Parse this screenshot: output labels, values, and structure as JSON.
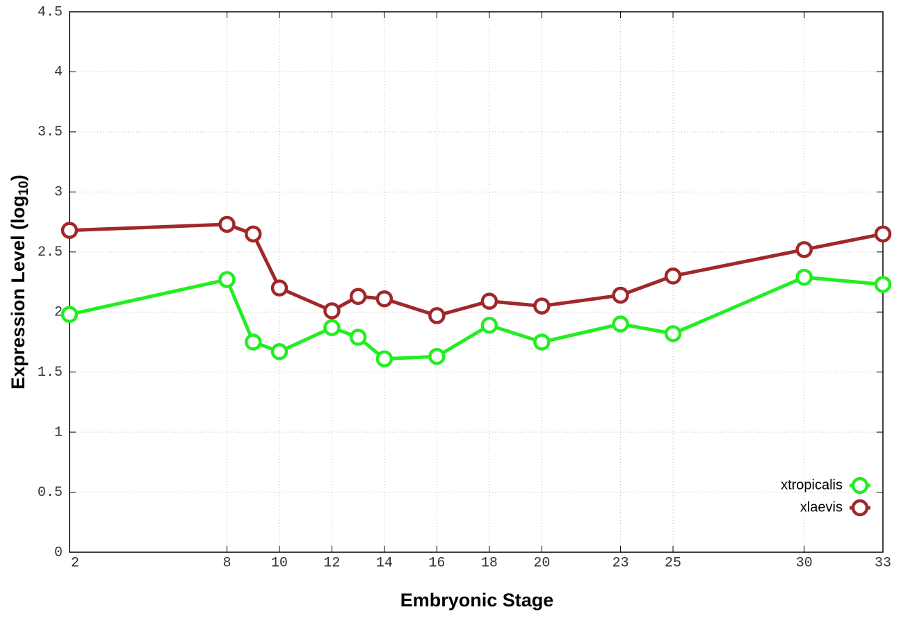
{
  "chart_data": {
    "type": "line",
    "xlabel": "Embryonic Stage",
    "ylabel": [
      "Expression Level (log",
      "10",
      ")"
    ],
    "x": [
      2,
      8,
      9,
      10,
      12,
      13,
      14,
      16,
      18,
      20,
      23,
      25,
      30,
      33
    ],
    "series": [
      {
        "name": "xtropicalis",
        "color": "#22ee22",
        "values": [
          1.98,
          2.27,
          1.75,
          1.67,
          1.87,
          1.79,
          1.61,
          1.63,
          1.89,
          1.75,
          1.9,
          1.82,
          2.29,
          2.23
        ]
      },
      {
        "name": "xlaevis",
        "color": "#a0282a",
        "values": [
          2.68,
          2.73,
          2.65,
          2.2,
          2.01,
          2.13,
          2.11,
          1.97,
          2.09,
          2.05,
          2.14,
          2.3,
          2.52,
          2.65
        ]
      }
    ],
    "xlim": [
      2,
      33
    ],
    "xticks": [
      2,
      8,
      10,
      12,
      14,
      16,
      18,
      20,
      23,
      25,
      30,
      33
    ],
    "ylim": [
      0,
      4.5
    ],
    "yticks": [
      0,
      0.5,
      1,
      1.5,
      2,
      2.5,
      3,
      3.5,
      4,
      4.5
    ],
    "grid": true,
    "legend": "bottom right"
  }
}
